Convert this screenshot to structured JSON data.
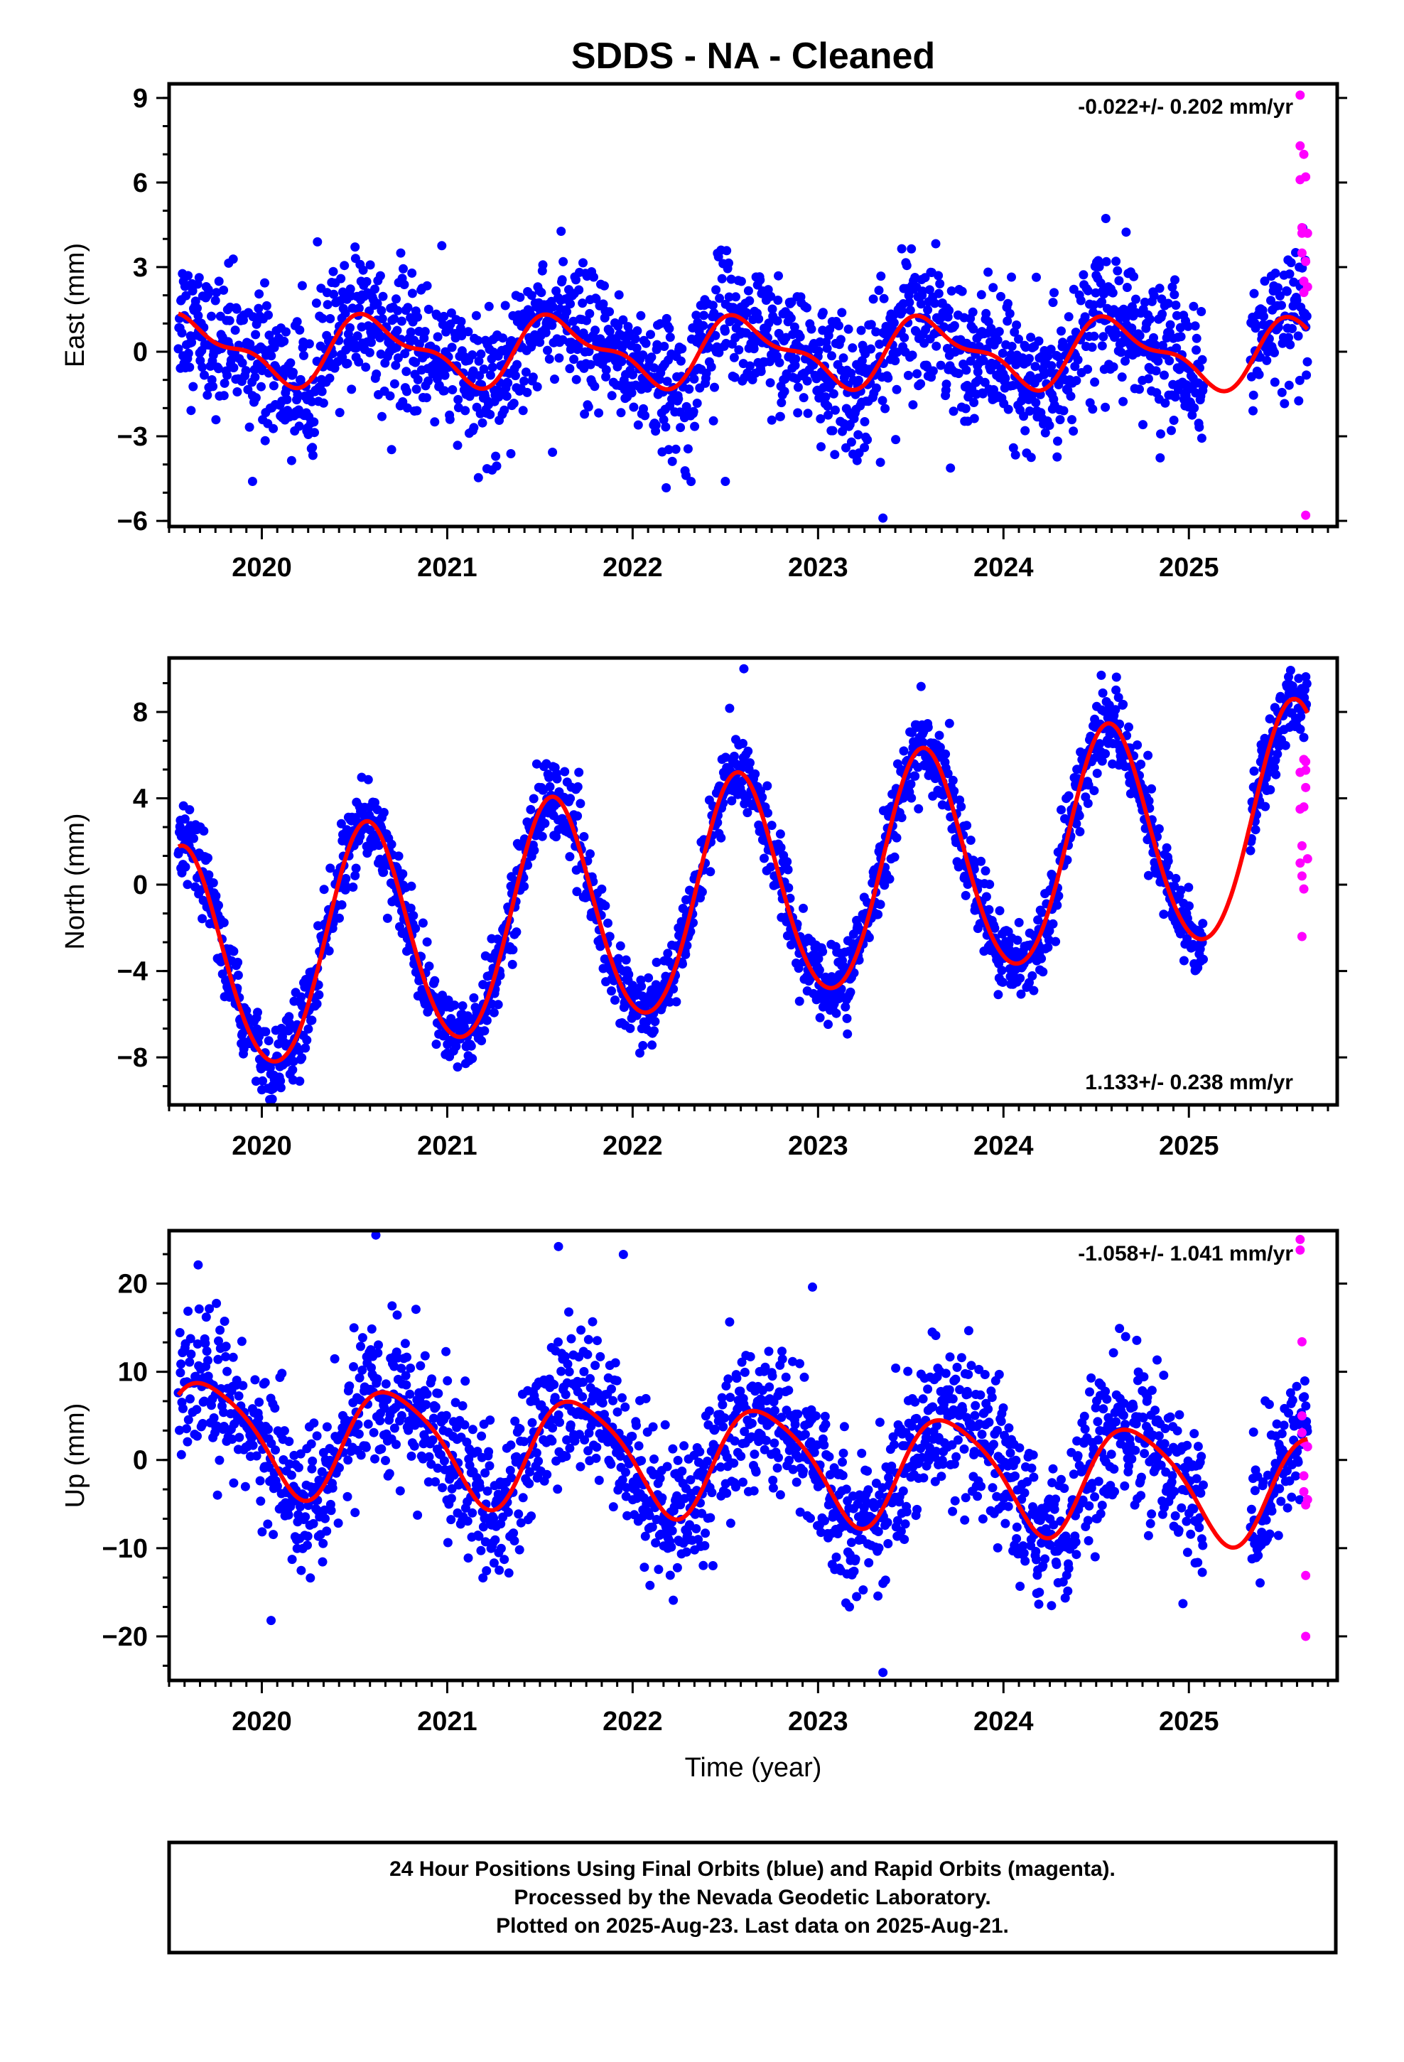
{
  "title": "SDDS  - NA - Cleaned",
  "xlabel": "Time (year)",
  "footer": [
    "24 Hour Positions Using Final Orbits (blue) and Rapid Orbits (magenta).",
    "Processed by the Nevada Geodetic Laboratory.",
    "Plotted on 2025-Aug-23. Last data on 2025-Aug-21."
  ],
  "colors": {
    "final": "#0000ff",
    "rapid": "#ff00ff",
    "fit": "#ff0000",
    "frame": "#000000"
  },
  "chart_data": [
    {
      "type": "scatter",
      "ylabel": "East (mm)",
      "rate_label": "-0.022+/- 0.202 mm/yr",
      "rate_position": "top-right",
      "xlim": [
        2019.5,
        2025.8
      ],
      "ylim": [
        -6.2,
        9.5
      ],
      "x_ticks": [
        2020,
        2021,
        2022,
        2023,
        2024,
        2025
      ],
      "y_ticks": [
        -6,
        -3,
        0,
        3,
        6,
        9
      ],
      "fit": {
        "offset": 0.0,
        "trend": -0.022,
        "annual_cos": -0.8,
        "annual_sin": -0.7,
        "semiannual_cos": 0.45,
        "semiannual_sin": -0.1,
        "ref_epoch": 2022.5
      },
      "scatter_std": 1.2,
      "data_range": [
        2019.55,
        2025.64
      ],
      "gap": [
        2025.08,
        2025.33
      ],
      "rapid_points": {
        "x": [
          2025.6,
          2025.6,
          2025.6,
          2025.61,
          2025.61,
          2025.61,
          2025.62,
          2025.62,
          2025.62,
          2025.63,
          2025.63,
          2025.63,
          2025.64,
          2025.64
        ],
        "y": [
          9.1,
          7.3,
          6.1,
          4.4,
          4.2,
          3.5,
          2.5,
          2.1,
          7.0,
          6.2,
          3.2,
          -5.8,
          2.3,
          4.2
        ]
      },
      "outliers": {
        "x": [
          2019.95,
          2022.5,
          2023.35,
          2023.25
        ],
        "y": [
          -4.6,
          -4.6,
          -5.9,
          -3.4
        ]
      }
    },
    {
      "type": "scatter",
      "ylabel": "North (mm)",
      "rate_label": "1.133+/- 0.238 mm/yr",
      "rate_position": "bottom-right",
      "xlim": [
        2019.5,
        2025.8
      ],
      "ylim": [
        -10.2,
        10.5
      ],
      "x_ticks": [
        2020,
        2021,
        2022,
        2023,
        2024,
        2025
      ],
      "y_ticks": [
        -8,
        -4,
        0,
        4,
        8
      ],
      "fit": {
        "offset": -0.5,
        "trend": 1.133,
        "annual_cos": -4.8,
        "annual_sin": -2.2,
        "semiannual_cos": 0.3,
        "semiannual_sin": 0.2,
        "ref_epoch": 2022.5
      },
      "scatter_std": 0.9,
      "data_range": [
        2019.55,
        2025.64
      ],
      "gap": [
        2025.08,
        2025.33
      ],
      "rapid_points": {
        "x": [
          2025.6,
          2025.6,
          2025.6,
          2025.61,
          2025.61,
          2025.61,
          2025.62,
          2025.62,
          2025.62,
          2025.63,
          2025.63,
          2025.63,
          2025.64
        ],
        "y": [
          5.2,
          3.5,
          1.0,
          0.4,
          1.8,
          -2.4,
          -0.2,
          3.6,
          5.8,
          5.7,
          4.5,
          5.3,
          1.2
        ]
      },
      "outliers": {
        "x": [
          2020.0,
          2021.0,
          2022.6,
          2022.9
        ],
        "y": [
          -9.5,
          -7.8,
          10.0,
          -5.4
        ]
      }
    },
    {
      "type": "scatter",
      "ylabel": "Up (mm)",
      "rate_label": "-1.058+/- 1.041 mm/yr",
      "rate_position": "top-right",
      "xlim": [
        2019.5,
        2025.8
      ],
      "ylim": [
        -25,
        26
      ],
      "x_ticks": [
        2020,
        2021,
        2022,
        2023,
        2024,
        2025
      ],
      "y_ticks": [
        -20,
        -10,
        0,
        10,
        20
      ],
      "fit": {
        "offset": 0.0,
        "trend": -1.058,
        "annual_cos": -1.5,
        "annual_sin": -6.0,
        "semiannual_cos": 1.0,
        "semiannual_sin": 0.3,
        "ref_epoch": 2022.5
      },
      "scatter_std": 4.2,
      "data_range": [
        2019.55,
        2025.64
      ],
      "gap": [
        2025.08,
        2025.33
      ],
      "rapid_points": {
        "x": [
          2025.6,
          2025.6,
          2025.61,
          2025.61,
          2025.61,
          2025.62,
          2025.62,
          2025.62,
          2025.63,
          2025.63,
          2025.63,
          2025.64,
          2025.64
        ],
        "y": [
          25.0,
          23.8,
          13.4,
          5.0,
          3.1,
          2.0,
          -1.8,
          -3.6,
          -5.1,
          -13.1,
          -20.0,
          -4.5,
          1.5
        ]
      },
      "outliers": {
        "x": [
          2021.6,
          2021.95,
          2023.35,
          2022.97,
          2020.05
        ],
        "y": [
          24.2,
          23.3,
          -24.1,
          19.6,
          -18.2
        ]
      }
    }
  ]
}
